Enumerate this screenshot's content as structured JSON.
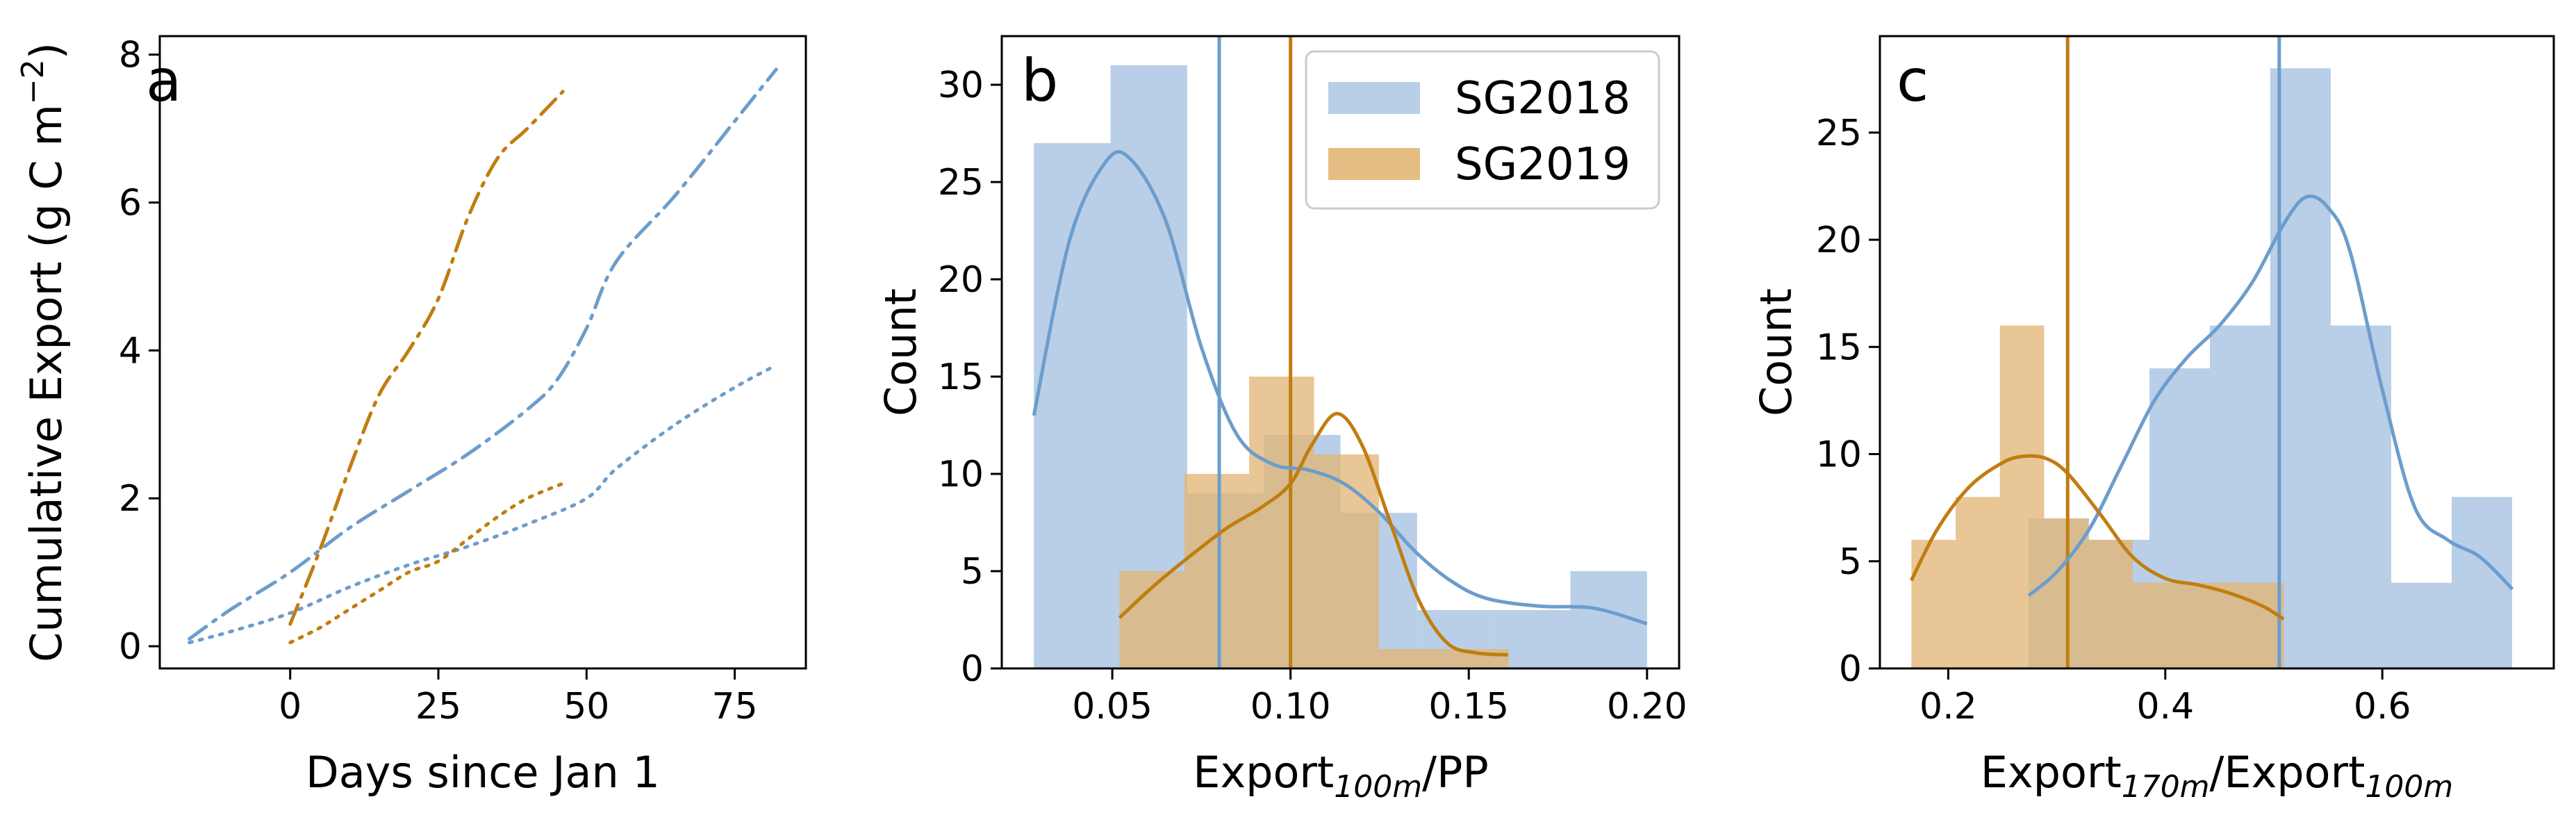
{
  "colors": {
    "sg2018": "#6c9dcc",
    "sg2019": "#c17d11",
    "sg2018_fill": "#b8cfe7",
    "sg2019_fill": "#e2b677",
    "overlap_fill": "#b59a6a"
  },
  "legend": [
    "SG2018",
    "SG2019"
  ],
  "panels": {
    "a": {
      "letter": "a",
      "ylabel": "Cumulative Export (g C m",
      "ylabel_exp": "−2",
      "ylabel_end": ")",
      "xlabel": "Days since Jan 1"
    },
    "b": {
      "letter": "b",
      "ylabel": "Count",
      "xlabel_main": "Export",
      "xlabel_sub": "100m",
      "xlabel_end": "/PP"
    },
    "c": {
      "letter": "c",
      "ylabel": "Count",
      "xlabel_main": "Export",
      "xlabel_sub": "170m",
      "xlabel_mid": "/Export",
      "xlabel_sub2": "100m"
    }
  },
  "chart_data": [
    {
      "panel": "a",
      "type": "line",
      "xlabel": "Days since Jan 1",
      "ylabel": "Cumulative Export (g C m−2)",
      "xlim": [
        -22,
        87
      ],
      "ylim": [
        -0.3,
        8.25
      ],
      "xticks": [
        0,
        25,
        50,
        75
      ],
      "yticks": [
        0,
        2,
        4,
        6,
        8
      ],
      "series": [
        {
          "color": "sg2018",
          "dash": "dashdot",
          "x": [
            -17,
            -10,
            0,
            10,
            20,
            30,
            40,
            45,
            50,
            55,
            65,
            75,
            82
          ],
          "y": [
            0.1,
            0.5,
            1.0,
            1.6,
            2.1,
            2.6,
            3.2,
            3.6,
            4.3,
            5.2,
            6.1,
            7.1,
            7.8
          ]
        },
        {
          "color": "sg2018",
          "dash": "dotted",
          "x": [
            -17,
            -10,
            0,
            10,
            20,
            30,
            40,
            50,
            55,
            65,
            75,
            82
          ],
          "y": [
            0.05,
            0.2,
            0.45,
            0.8,
            1.1,
            1.35,
            1.65,
            2.0,
            2.4,
            3.0,
            3.5,
            3.8
          ]
        },
        {
          "color": "sg2019",
          "dash": "dashdot",
          "x": [
            0,
            5,
            10,
            15,
            20,
            25,
            30,
            35,
            40,
            46
          ],
          "y": [
            0.3,
            1.3,
            2.4,
            3.4,
            4.0,
            4.7,
            5.8,
            6.6,
            7.0,
            7.5
          ]
        },
        {
          "color": "sg2019",
          "dash": "dotted",
          "x": [
            0,
            5,
            10,
            15,
            20,
            25,
            30,
            35,
            40,
            46
          ],
          "y": [
            0.05,
            0.25,
            0.5,
            0.75,
            1.0,
            1.15,
            1.45,
            1.75,
            2.0,
            2.2
          ]
        }
      ]
    },
    {
      "panel": "b",
      "type": "bar",
      "xlabel": "Export100m/PP",
      "ylabel": "Count",
      "xlim": [
        0.019,
        0.209
      ],
      "ylim": [
        0,
        32.5
      ],
      "xticks": [
        0.05,
        0.1,
        0.15,
        0.2
      ],
      "yticks": [
        0,
        5,
        10,
        15,
        20,
        25,
        30
      ],
      "legend_position": "top-right",
      "series": [
        {
          "name": "SG2018",
          "color": "sg2018",
          "bin_edges": [
            0.028,
            0.0495,
            0.071,
            0.0925,
            0.114,
            0.1355,
            0.157,
            0.1785,
            0.2
          ],
          "counts": [
            27,
            31,
            9,
            12,
            8,
            3,
            3,
            5
          ],
          "mean_line": 0.08,
          "kde": {
            "x": [
              0.028,
              0.038,
              0.048,
              0.055,
              0.065,
              0.075,
              0.085,
              0.095,
              0.105,
              0.115,
              0.125,
              0.135,
              0.145,
              0.155,
              0.17,
              0.185,
              0.2
            ],
            "y": [
              13,
              22,
              26,
              26.2,
              23,
              16.5,
              12,
              10.5,
              10.2,
              9.5,
              8,
              6,
              4.5,
              3.6,
              3.2,
              3.1,
              2.3
            ]
          }
        },
        {
          "name": "SG2019",
          "color": "sg2019",
          "bin_edges": [
            0.052,
            0.0702,
            0.0884,
            0.1066,
            0.1248,
            0.143,
            0.1612
          ],
          "counts": [
            5,
            10,
            15,
            11,
            1,
            1
          ],
          "mean_line": 0.1,
          "kde": {
            "x": [
              0.052,
              0.062,
              0.072,
              0.082,
              0.092,
              0.1,
              0.106,
              0.113,
              0.12,
              0.128,
              0.136,
              0.144,
              0.152,
              0.161
            ],
            "y": [
              2.6,
              4.3,
              5.8,
              7.2,
              8.3,
              9.5,
              11.5,
              13.1,
              11.5,
              7.5,
              3.5,
              1.3,
              0.8,
              0.7
            ]
          }
        }
      ]
    },
    {
      "panel": "c",
      "type": "bar",
      "xlabel": "Export170m/Export100m",
      "ylabel": "Count",
      "xlim": [
        0.137,
        0.758
      ],
      "ylim": [
        0,
        29.5
      ],
      "xticks": [
        0.2,
        0.4,
        0.6
      ],
      "yticks": [
        0,
        5,
        10,
        15,
        20,
        25
      ],
      "series": [
        {
          "name": "SG2018",
          "color": "sg2018",
          "bin_edges": [
            0.274,
            0.3297,
            0.3854,
            0.4411,
            0.4968,
            0.5525,
            0.6082,
            0.6639,
            0.7196
          ],
          "counts": [
            7,
            6,
            14,
            16,
            28,
            16,
            4,
            8
          ],
          "mean_line": 0.505,
          "kde": {
            "x": [
              0.274,
              0.3,
              0.33,
              0.36,
              0.39,
              0.42,
              0.45,
              0.48,
              0.51,
              0.53,
              0.55,
              0.57,
              0.6,
              0.63,
              0.66,
              0.69,
              0.72
            ],
            "y": [
              3.4,
              4.5,
              6.5,
              9.5,
              12.5,
              14.5,
              16,
              18,
              20.8,
              22,
              21.5,
              19.5,
              13,
              7.5,
              6,
              5.2,
              3.7
            ]
          }
        },
        {
          "name": "SG2019",
          "color": "sg2019",
          "bin_edges": [
            0.166,
            0.2068,
            0.2476,
            0.2884,
            0.3292,
            0.37,
            0.4108,
            0.4516,
            0.4924,
            0.5092
          ],
          "counts": [
            6,
            8,
            16,
            7,
            6,
            4,
            4,
            4,
            4
          ],
          "mean_line": 0.31,
          "kde": {
            "x": [
              0.166,
              0.19,
              0.22,
              0.25,
              0.27,
              0.29,
              0.31,
              0.34,
              0.37,
              0.4,
              0.43,
              0.46,
              0.49,
              0.509
            ],
            "y": [
              4.1,
              6.5,
              8.5,
              9.6,
              9.9,
              9.8,
              9.1,
              7.2,
              5.2,
              4.2,
              3.9,
              3.5,
              2.9,
              2.3
            ]
          }
        }
      ]
    }
  ]
}
